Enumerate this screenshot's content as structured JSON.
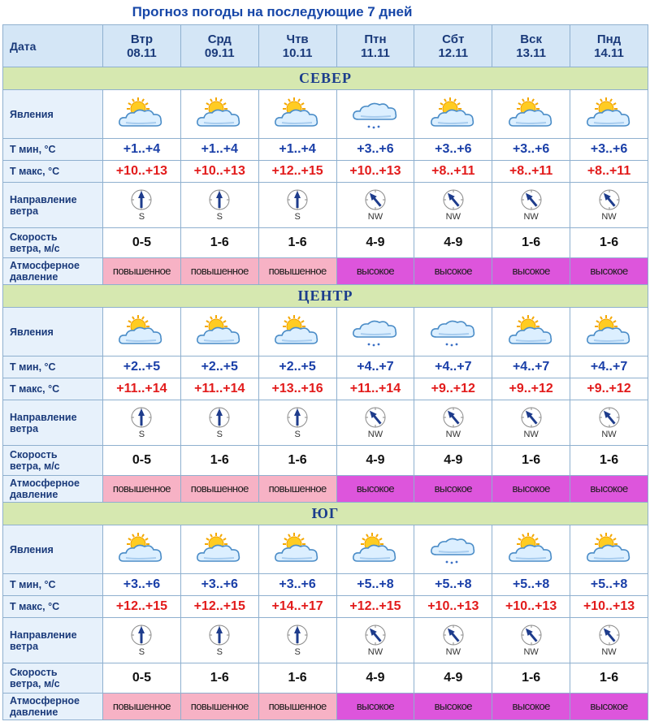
{
  "title": "Прогноз погоды на последующие 7 дней",
  "labels": {
    "date": "Дата",
    "phenomena": "Явления",
    "tmin": "Т мин, °С",
    "tmax": "Т макс, °С",
    "wind_dir_1": "Направление",
    "wind_dir_2": "ветра",
    "wind_speed_1": "Скорость",
    "wind_speed_2": "ветра, м/с",
    "pressure_1": "Атмосферное",
    "pressure_2": "давление"
  },
  "days": [
    {
      "name": "Втр",
      "date": "08.11"
    },
    {
      "name": "Срд",
      "date": "09.11"
    },
    {
      "name": "Чтв",
      "date": "10.11"
    },
    {
      "name": "Птн",
      "date": "11.11"
    },
    {
      "name": "Сбт",
      "date": "12.11"
    },
    {
      "name": "Вск",
      "date": "13.11"
    },
    {
      "name": "Пнд",
      "date": "14.11"
    }
  ],
  "icons": {
    "partly_cloudy": "partly-cloudy-icon",
    "cloudy_light_snow": "cloud-light-snow-icon",
    "compass": "wind-compass-icon"
  },
  "colors": {
    "tmin": "#1a3fa8",
    "tmax": "#e21b1b",
    "pressure_elevated": "#f7b2c5",
    "pressure_high": "#dd55dc",
    "region_band": "#d6e8b0"
  },
  "regions": [
    {
      "name": "СЕВЕР",
      "weather": [
        "partly_cloudy",
        "partly_cloudy",
        "partly_cloudy",
        "cloudy_light_snow",
        "partly_cloudy",
        "partly_cloudy",
        "partly_cloudy"
      ],
      "tmin": [
        "+1..+4",
        "+1..+4",
        "+1..+4",
        "+3..+6",
        "+3..+6",
        "+3..+6",
        "+3..+6"
      ],
      "tmax": [
        "+10..+13",
        "+10..+13",
        "+12..+15",
        "+10..+13",
        "+8..+11",
        "+8..+11",
        "+8..+11"
      ],
      "wind_dir": [
        "S",
        "S",
        "S",
        "NW",
        "NW",
        "NW",
        "NW"
      ],
      "wind_speed": [
        "0-5",
        "1-6",
        "1-6",
        "4-9",
        "4-9",
        "1-6",
        "1-6"
      ],
      "pressure": [
        "повышенное",
        "повышенное",
        "повышенное",
        "высокое",
        "высокое",
        "высокое",
        "высокое"
      ]
    },
    {
      "name": "ЦЕНТР",
      "weather": [
        "partly_cloudy",
        "partly_cloudy",
        "partly_cloudy",
        "cloudy_light_snow",
        "cloudy_light_snow",
        "partly_cloudy",
        "partly_cloudy"
      ],
      "tmin": [
        "+2..+5",
        "+2..+5",
        "+2..+5",
        "+4..+7",
        "+4..+7",
        "+4..+7",
        "+4..+7"
      ],
      "tmax": [
        "+11..+14",
        "+11..+14",
        "+13..+16",
        "+11..+14",
        "+9..+12",
        "+9..+12",
        "+9..+12"
      ],
      "wind_dir": [
        "S",
        "S",
        "S",
        "NW",
        "NW",
        "NW",
        "NW"
      ],
      "wind_speed": [
        "0-5",
        "1-6",
        "1-6",
        "4-9",
        "4-9",
        "1-6",
        "1-6"
      ],
      "pressure": [
        "повышенное",
        "повышенное",
        "повышенное",
        "высокое",
        "высокое",
        "высокое",
        "высокое"
      ]
    },
    {
      "name": "ЮГ",
      "weather": [
        "partly_cloudy",
        "partly_cloudy",
        "partly_cloudy",
        "partly_cloudy",
        "cloudy_light_snow",
        "partly_cloudy",
        "partly_cloudy"
      ],
      "tmin": [
        "+3..+6",
        "+3..+6",
        "+3..+6",
        "+5..+8",
        "+5..+8",
        "+5..+8",
        "+5..+8"
      ],
      "tmax": [
        "+12..+15",
        "+12..+15",
        "+14..+17",
        "+12..+15",
        "+10..+13",
        "+10..+13",
        "+10..+13"
      ],
      "wind_dir": [
        "S",
        "S",
        "S",
        "NW",
        "NW",
        "NW",
        "NW"
      ],
      "wind_speed": [
        "0-5",
        "1-6",
        "1-6",
        "4-9",
        "4-9",
        "1-6",
        "1-6"
      ],
      "pressure": [
        "повышенное",
        "повышенное",
        "повышенное",
        "высокое",
        "высокое",
        "высокое",
        "высокое"
      ]
    }
  ]
}
